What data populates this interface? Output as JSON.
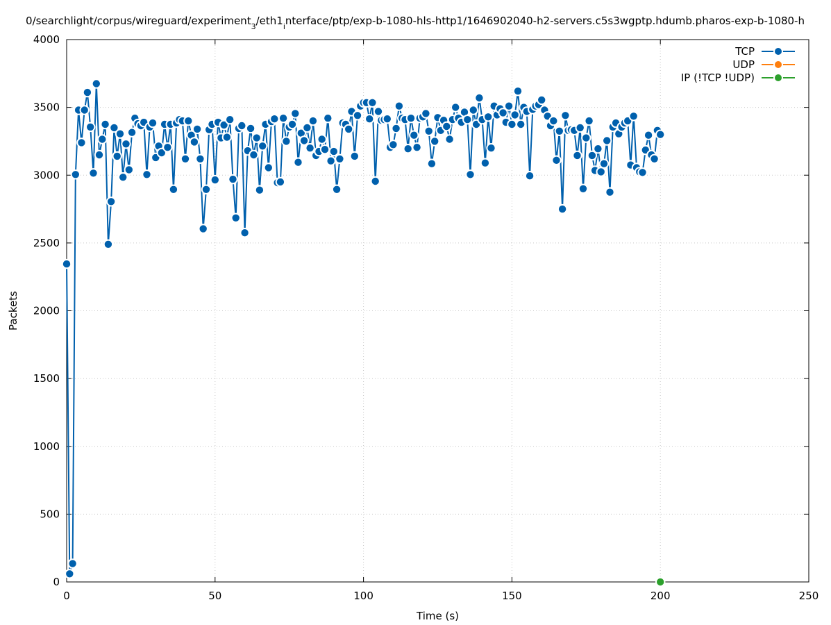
{
  "chart_data": {
    "type": "line",
    "title": "0/searchlight/corpus/wireguard/experiment_3/eth1_interface/ptp/exp-b-1080-hls-http1/1646902040-h2-servers.c5s3wgptp.hdumb.pharos-exp-b-1080-h",
    "title_parts": {
      "before": "0/searchlight/corpus/wireguard/experiment",
      "sub1": "3",
      "middle": "/eth1",
      "sub2": "i",
      "after": "nterface/ptp/exp-b-1080-hls-http1/1646902040-h2-servers.c5s3wgptp.hdumb.pharos-exp-b-1080-h"
    },
    "xlabel": "Time (s)",
    "ylabel": "Packets",
    "xlim": [
      0,
      250
    ],
    "ylim": [
      0,
      4000
    ],
    "xticks": [
      0,
      50,
      100,
      150,
      200,
      250
    ],
    "yticks": [
      0,
      500,
      1000,
      1500,
      2000,
      2500,
      3000,
      3500,
      4000
    ],
    "grid": true,
    "legend_position": "top-right",
    "series": [
      {
        "name": "TCP",
        "color": "#0060ad",
        "x": [
          0,
          1,
          2,
          3,
          4,
          5,
          6,
          7,
          8,
          9,
          10,
          11,
          12,
          13,
          14,
          15,
          16,
          17,
          18,
          19,
          20,
          21,
          22,
          23,
          24,
          25,
          26,
          27,
          28,
          29,
          30,
          31,
          32,
          33,
          34,
          35,
          36,
          37,
          38,
          39,
          40,
          41,
          42,
          43,
          44,
          45,
          46,
          47,
          48,
          49,
          50,
          51,
          52,
          53,
          54,
          55,
          56,
          57,
          58,
          59,
          60,
          61,
          62,
          63,
          64,
          65,
          66,
          67,
          68,
          69,
          70,
          71,
          72,
          73,
          74,
          75,
          76,
          77,
          78,
          79,
          80,
          81,
          82,
          83,
          84,
          85,
          86,
          87,
          88,
          89,
          90,
          91,
          92,
          93,
          94,
          95,
          96,
          97,
          98,
          99,
          100,
          101,
          102,
          103,
          104,
          105,
          106,
          107,
          108,
          109,
          110,
          111,
          112,
          113,
          114,
          115,
          116,
          117,
          118,
          119,
          120,
          121,
          122,
          123,
          124,
          125,
          126,
          127,
          128,
          129,
          130,
          131,
          132,
          133,
          134,
          135,
          136,
          137,
          138,
          139,
          140,
          141,
          142,
          143,
          144,
          145,
          146,
          147,
          148,
          149,
          150,
          151,
          152,
          153,
          154,
          155,
          156,
          157,
          158,
          159,
          160,
          161,
          162,
          163,
          164,
          165,
          166,
          167,
          168,
          169,
          170,
          171,
          172,
          173,
          174,
          175,
          176,
          177,
          178,
          179,
          180,
          181,
          182,
          183,
          184,
          185,
          186,
          187,
          188,
          189,
          190,
          191,
          192,
          193,
          194,
          195,
          196,
          197,
          198,
          199,
          200
        ],
        "values": [
          2345,
          60,
          135,
          3005,
          3480,
          3240,
          3480,
          3610,
          3355,
          3015,
          3675,
          3150,
          3265,
          3375,
          2490,
          2805,
          3350,
          3140,
          3305,
          2985,
          3230,
          3040,
          3315,
          3420,
          3380,
          3365,
          3390,
          3005,
          3355,
          3385,
          3130,
          3215,
          3165,
          3375,
          3205,
          3375,
          2895,
          3385,
          3410,
          3400,
          3120,
          3400,
          3295,
          3245,
          3340,
          3120,
          2605,
          2895,
          3335,
          3375,
          2965,
          3390,
          3275,
          3370,
          3280,
          3410,
          2970,
          2685,
          3345,
          3365,
          2575,
          3180,
          3345,
          3150,
          3275,
          2890,
          3215,
          3375,
          3055,
          3395,
          3415,
          2945,
          2950,
          3420,
          3250,
          3355,
          3375,
          3455,
          3095,
          3310,
          3255,
          3350,
          3200,
          3400,
          3145,
          3175,
          3265,
          3190,
          3420,
          3105,
          3175,
          2895,
          3120,
          3385,
          3375,
          3340,
          3470,
          3140,
          3440,
          3510,
          3535,
          3535,
          3415,
          3535,
          2955,
          3470,
          3405,
          3410,
          3415,
          3205,
          3225,
          3345,
          3510,
          3420,
          3410,
          3195,
          3420,
          3295,
          3205,
          3420,
          3430,
          3455,
          3325,
          3085,
          3250,
          3425,
          3330,
          3405,
          3360,
          3265,
          3410,
          3500,
          3420,
          3390,
          3465,
          3410,
          3005,
          3480,
          3375,
          3570,
          3410,
          3090,
          3430,
          3200,
          3510,
          3445,
          3490,
          3460,
          3390,
          3510,
          3375,
          3445,
          3620,
          3375,
          3500,
          3470,
          2995,
          3485,
          3510,
          3520,
          3555,
          3480,
          3435,
          3365,
          3400,
          3110,
          3325,
          2750,
          3440,
          3330,
          3335,
          3330,
          3145,
          3350,
          2900,
          3275,
          3400,
          3145,
          3035,
          3195,
          3025,
          3085,
          3255,
          2875,
          3355,
          3385,
          3305,
          3355,
          3385,
          3400,
          3075,
          3435,
          3055,
          3025,
          3020,
          3185,
          3295,
          3150,
          3120,
          3330,
          3300
        ]
      },
      {
        "name": "UDP",
        "color": "#ff7f0e",
        "x": [],
        "values": []
      },
      {
        "name": "IP (!TCP  !UDP)",
        "color": "#2ca02c",
        "x": [
          200
        ],
        "values": [
          0
        ]
      }
    ]
  }
}
